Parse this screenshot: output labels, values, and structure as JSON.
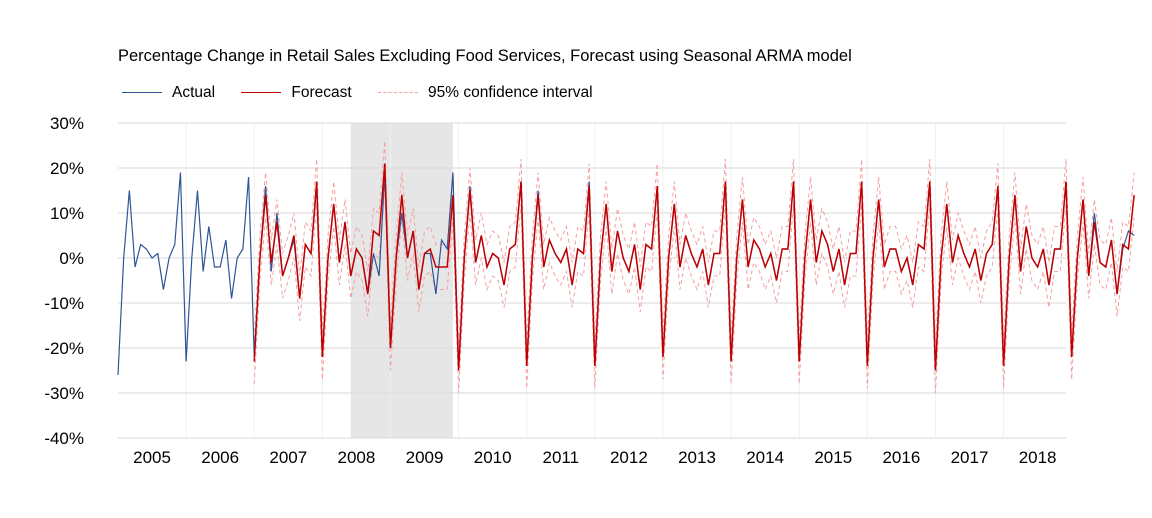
{
  "chart_data": {
    "type": "line",
    "title": "Percentage Change in Retail Sales Excluding Food Services, Forecast using Seasonal ARMA model",
    "xlabel": "",
    "ylabel": "",
    "ylim": [
      -0.4,
      0.3
    ],
    "y_ticks": [
      "30%",
      "20%",
      "10%",
      "0%",
      "-10%",
      "-20%",
      "-30%",
      "-40%"
    ],
    "y_tick_values": [
      0.3,
      0.2,
      0.1,
      0.0,
      -0.1,
      -0.2,
      -0.3,
      -0.4
    ],
    "x_tick_labels": [
      "2005",
      "2006",
      "2007",
      "2008",
      "2009",
      "2010",
      "2011",
      "2012",
      "2013",
      "2014",
      "2015",
      "2016",
      "2017",
      "2018"
    ],
    "x_range": [
      "2004-07",
      "2018-06"
    ],
    "grid": "horizontal",
    "legend_position": "top-left",
    "shaded_region": {
      "start": "2007-12",
      "end": "2009-06"
    },
    "colors": {
      "actual": "#2f5597",
      "forecast": "#c00000",
      "ci": "#f4a0a0",
      "shade": "#e7e6e6",
      "grid": "#d9d9d9"
    },
    "seasonal_pattern_percent": [
      -24,
      0,
      13,
      -1,
      2,
      1,
      -2,
      1,
      -6,
      1,
      2,
      17
    ],
    "forecast_start": "2006-07",
    "ci_halfwidth_percent": 5,
    "series": [
      {
        "name": "Actual",
        "start": "2004-07",
        "values_percent": [
          -26,
          0,
          15,
          -2,
          3,
          2,
          0,
          1,
          -7,
          0,
          3,
          19,
          -23,
          0,
          15,
          -3,
          7,
          -2,
          -2,
          4,
          -9,
          0,
          2,
          18,
          -22,
          0,
          16,
          -3,
          10,
          -4,
          0,
          4,
          -9,
          3,
          1,
          16,
          -22,
          0,
          12,
          -1,
          8,
          -4,
          2,
          0,
          -8,
          1,
          -4,
          19,
          -20,
          0,
          10,
          0,
          6,
          -7,
          1,
          1,
          -8,
          4,
          2,
          19,
          -25,
          0,
          16,
          -1,
          5,
          -2,
          1,
          0,
          -6,
          2,
          3,
          17,
          -24,
          0,
          15,
          -2,
          4,
          1,
          -1,
          2,
          -6,
          2,
          1,
          17,
          -24,
          0,
          12,
          -3,
          6,
          0,
          -3,
          3,
          -7,
          3,
          2,
          16,
          -22,
          0,
          12,
          -2,
          5,
          1,
          -2,
          2,
          -6,
          1,
          1,
          17,
          -23,
          0,
          13,
          -2,
          4,
          2,
          -2,
          1,
          -5,
          2,
          2,
          17,
          -23,
          0,
          13,
          -1,
          6,
          3,
          -3,
          2,
          -6,
          1,
          1,
          17,
          -24,
          0,
          13,
          -2,
          2,
          2,
          -3,
          0,
          -6,
          3,
          2,
          17,
          -25,
          0,
          12,
          -1,
          5,
          1,
          -2,
          2,
          -5,
          1,
          3,
          16,
          -24,
          0,
          14,
          -3,
          7,
          0,
          -2,
          2,
          -6,
          2,
          2,
          17,
          -22,
          0,
          13,
          -4,
          10,
          -1,
          -2,
          4,
          -8,
          2,
          6,
          5
        ]
      },
      {
        "name": "Forecast",
        "start": "2006-07",
        "values_percent": [
          -23,
          0,
          14,
          -1,
          8,
          -4,
          0,
          5,
          -9,
          3,
          1,
          17,
          -22,
          0,
          12,
          -1,
          8,
          -4,
          2,
          0,
          -8,
          6,
          5,
          21,
          -20,
          0,
          14,
          0,
          6,
          -7,
          1,
          2,
          -2,
          -2,
          -2,
          14,
          -25,
          0,
          15,
          -1,
          5,
          -2,
          1,
          0,
          -6,
          2,
          3,
          17,
          -24,
          0,
          14,
          -2,
          4,
          1,
          -1,
          2,
          -6,
          2,
          1,
          16,
          -24,
          0,
          12,
          -3,
          6,
          0,
          -3,
          3,
          -7,
          3,
          2,
          16,
          -22,
          0,
          12,
          -2,
          5,
          1,
          -2,
          2,
          -6,
          1,
          1,
          17,
          -23,
          0,
          13,
          -2,
          4,
          2,
          -2,
          1,
          -5,
          2,
          2,
          17,
          -23,
          0,
          13,
          -1,
          6,
          3,
          -3,
          2,
          -6,
          1,
          1,
          17,
          -24,
          0,
          13,
          -2,
          2,
          2,
          -3,
          0,
          -6,
          3,
          2,
          17,
          -25,
          0,
          12,
          -1,
          5,
          1,
          -2,
          2,
          -5,
          1,
          3,
          16,
          -24,
          0,
          14,
          -3,
          7,
          0,
          -2,
          2,
          -6,
          2,
          2,
          17,
          -22,
          0,
          13,
          -4,
          8,
          -1,
          -2,
          4,
          -8,
          3,
          2,
          14
        ]
      },
      {
        "name": "95% confidence interval"
      }
    ]
  }
}
